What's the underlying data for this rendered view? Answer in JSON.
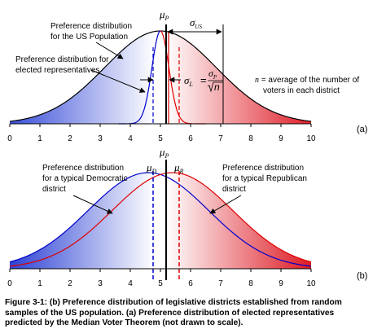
{
  "panel_a": {
    "label": "(a)",
    "us_pop_label": [
      "Preference distribution",
      "for the US Population"
    ],
    "elected_label": [
      "Preference distribution for",
      "elected representatives"
    ],
    "mu_p": "μ",
    "mu_p_sub": "P",
    "sigma_us": "σ",
    "sigma_us_sub": "US",
    "sigma_l": "σ",
    "sigma_l_sub": "L",
    "sigma_l_num": "σ",
    "sigma_l_num_sub": "P",
    "sigma_l_den": "n",
    "n_def": [
      "n = average of the number of",
      "voters in each district"
    ]
  },
  "panel_b": {
    "label": "(b)",
    "mu_p": "μ",
    "mu_p_sub": "P",
    "mu_d": "μ",
    "mu_d_sub": "D",
    "mu_r": "μ",
    "mu_r_sub": "R",
    "dem_label": [
      "Preference distribution",
      "for a typical Democratic",
      "district"
    ],
    "rep_label": [
      "Preference distribution",
      "for a typical Republican",
      "district"
    ]
  },
  "axis_ticks": [
    "0",
    "1",
    "2",
    "3",
    "4",
    "5",
    "6",
    "7",
    "8",
    "9",
    "10"
  ],
  "caption": [
    "Figure 3-1:  (b) Preference distribution of legislative districts established from random",
    "samples of the US population.  (a) Preference distribution of elected representatives",
    "predicted by the Median Voter Theorem (not drawn to scale)."
  ],
  "colors": {
    "blue": "#0000cc",
    "red": "#dd0000",
    "fill_left": "#3a4fd8",
    "fill_right": "#e0202a"
  }
}
